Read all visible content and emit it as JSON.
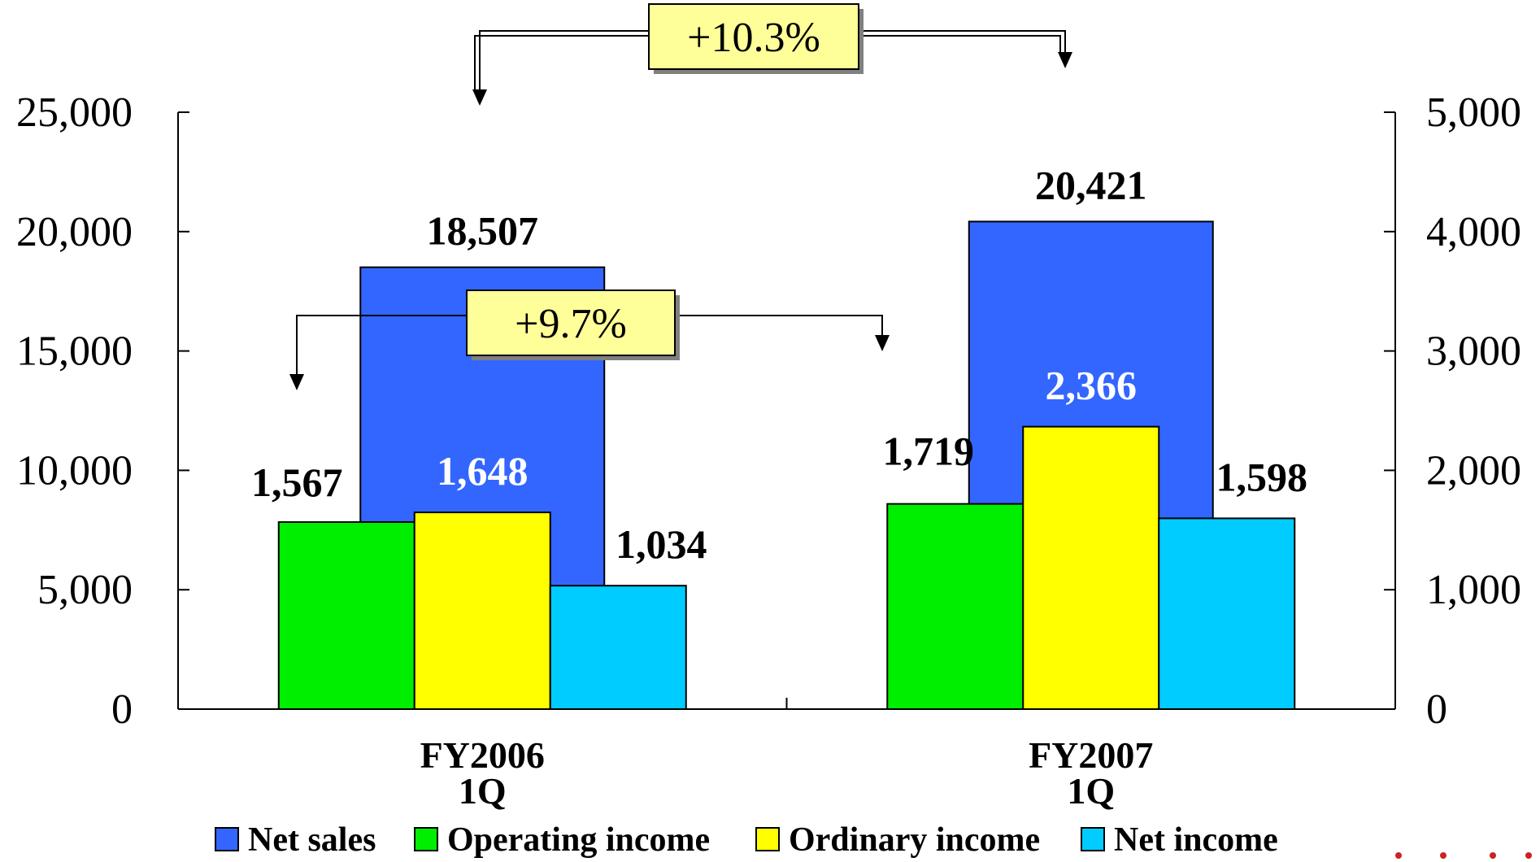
{
  "chart_data": {
    "type": "bar",
    "categories": [
      [
        "FY2006",
        "1Q"
      ],
      [
        "FY2007",
        "1Q"
      ]
    ],
    "series": [
      {
        "name": "Net sales",
        "axis": "left",
        "values": [
          18507,
          20421
        ],
        "color": "#3366FF",
        "labels": [
          "18,507",
          "20,421"
        ],
        "label_color": "#000000"
      },
      {
        "name": "Operating income",
        "axis": "right",
        "values": [
          1567,
          1719
        ],
        "color": "#00EE00",
        "labels": [
          "1,567",
          "1,719"
        ],
        "label_color": "#000000"
      },
      {
        "name": "Ordinary income",
        "axis": "right",
        "values": [
          1648,
          2366
        ],
        "color": "#FFFF00",
        "labels": [
          "1,648",
          "2,366"
        ],
        "label_color": "#FFFFFF"
      },
      {
        "name": "Net income",
        "axis": "right",
        "values": [
          1034,
          1598
        ],
        "color": "#00CCFF",
        "labels": [
          "1,034",
          "1,598"
        ],
        "label_color": "#000000"
      }
    ],
    "left_axis": {
      "ylim": [
        0,
        25000
      ],
      "ticks": [
        "0",
        "5,000",
        "10,000",
        "15,000",
        "20,000",
        "25,000"
      ]
    },
    "right_axis": {
      "ylim": [
        0,
        5000
      ],
      "ticks": [
        "0",
        "1,000",
        "2,000",
        "3,000",
        "4,000",
        "5,000"
      ]
    },
    "annotations": [
      {
        "text": "+10.3%",
        "series": "Net sales"
      },
      {
        "text": "+9.7%",
        "series": "Operating income"
      }
    ],
    "callout_fill": "#FFFF99",
    "legend_position": "bottom",
    "grid": false
  }
}
